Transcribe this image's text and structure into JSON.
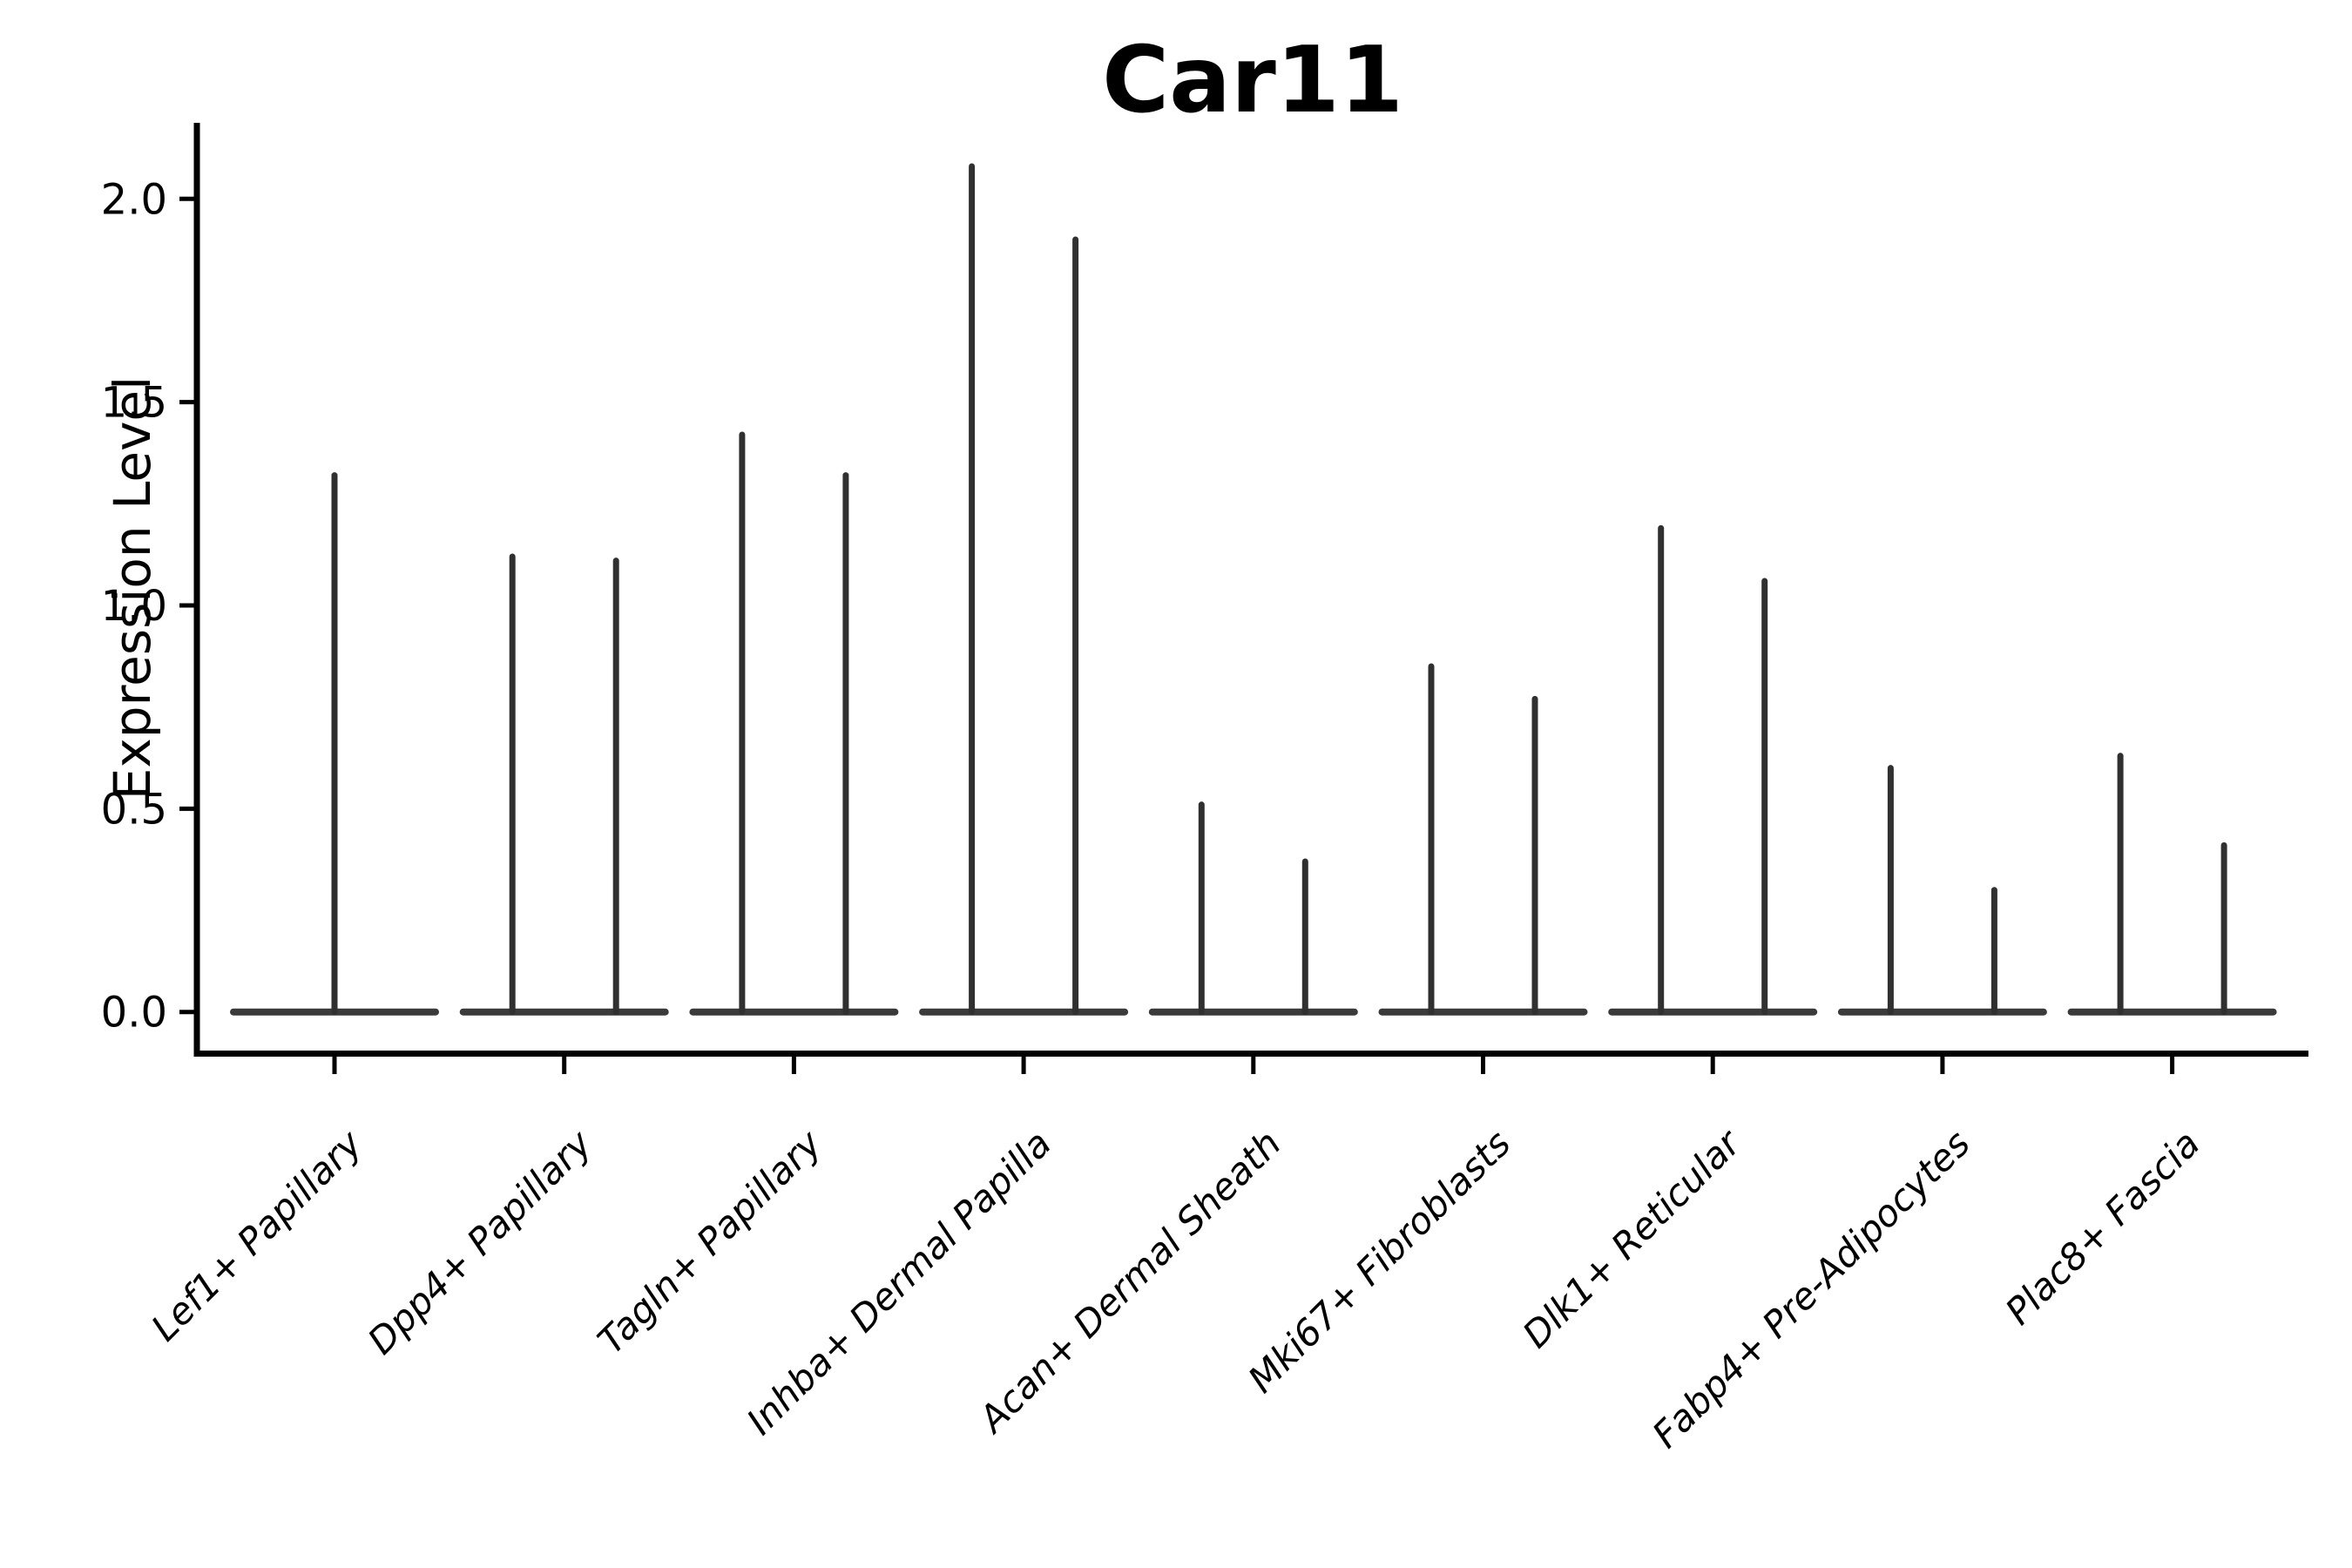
{
  "chart_data": {
    "type": "violin",
    "title": "Car11",
    "ylabel": "Expression Level",
    "xlabel": "",
    "grid": false,
    "legend": "none",
    "yticks": [
      "0.0",
      "0.5",
      "1.0",
      "1.5",
      "2.0"
    ],
    "ylim": [
      -0.1,
      2.19
    ],
    "colors": {
      "violin_stroke": "#303030",
      "violin_base": "#3a3a3a",
      "axis": "#000000",
      "text": "#000000",
      "background": "#ffffff"
    },
    "categories": [
      {
        "label": "Lef1+ Papillary",
        "violin_maxima": [
          1.32
        ]
      },
      {
        "label": "Dpp4+ Papillary",
        "violin_maxima": [
          1.12,
          1.11
        ]
      },
      {
        "label": "Tagln+ Papillary",
        "violin_maxima": [
          1.42,
          1.32
        ]
      },
      {
        "label": "Inhba+ Dermal Papilla",
        "violin_maxima": [
          2.08,
          1.9
        ]
      },
      {
        "label": "Acan+ Dermal Sheath",
        "violin_maxima": [
          0.51,
          0.37
        ]
      },
      {
        "label": "Mki67+ Fibroblasts",
        "violin_maxima": [
          0.85,
          0.77
        ]
      },
      {
        "label": "Dlk1+ Reticular",
        "violin_maxima": [
          1.19,
          1.06
        ]
      },
      {
        "label": "Fabp4+ Pre-Adipocytes",
        "violin_maxima": [
          0.6,
          0.3
        ]
      },
      {
        "label": "Plac8+ Fascia",
        "violin_maxima": [
          0.63,
          0.41
        ]
      }
    ]
  }
}
